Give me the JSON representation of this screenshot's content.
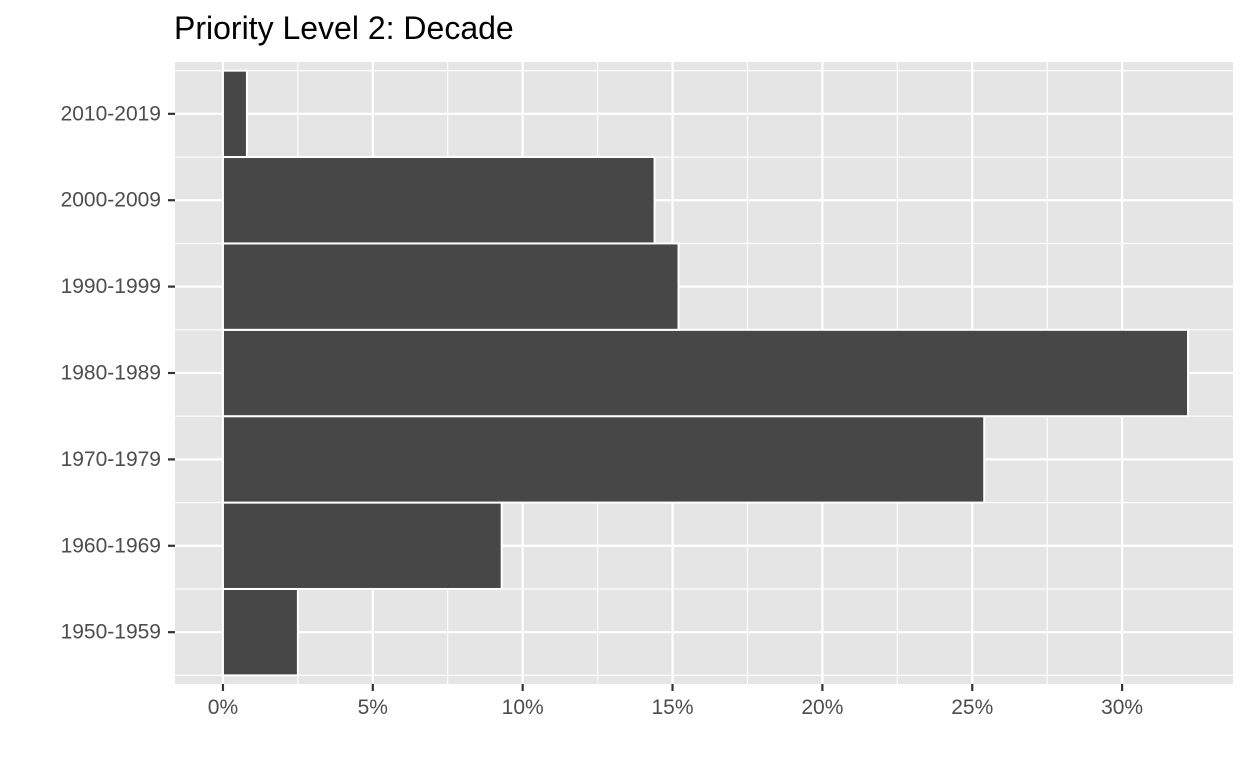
{
  "chart_data": {
    "type": "bar",
    "orientation": "horizontal",
    "title": "Priority Level 2: Decade",
    "xlabel": "",
    "ylabel": "",
    "categories": [
      "1950-1959",
      "1960-1969",
      "1970-1979",
      "1980-1989",
      "1990-1999",
      "2000-2009",
      "2010-2019"
    ],
    "values": [
      2.5,
      9.3,
      25.4,
      32.2,
      15.2,
      14.4,
      0.8
    ],
    "xlim": [
      -1.6,
      33.7
    ],
    "xticks": [
      0,
      5,
      10,
      15,
      20,
      25,
      30
    ],
    "xtick_labels": [
      "0%",
      "5%",
      "10%",
      "15%",
      "20%",
      "25%",
      "30%"
    ],
    "grid": true,
    "legend": "none",
    "colors": {
      "panel_background": "#e5e5e5",
      "grid_line": "#ffffff",
      "bar_fill": "#474747",
      "bar_outline": "#ffffff",
      "tick_text": "#4d4d4d",
      "tick_mark": "#333333",
      "title_text": "#000000"
    }
  }
}
